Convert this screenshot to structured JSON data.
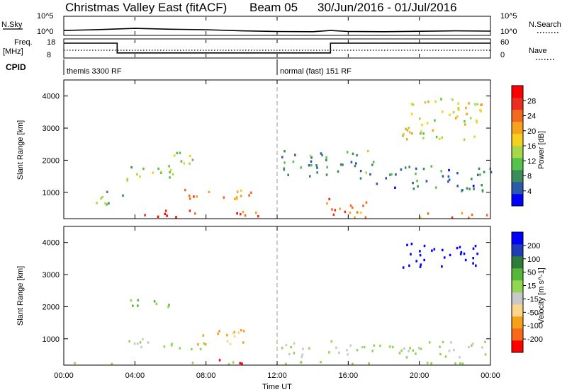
{
  "header": {
    "title": "Christmas Valley East (fitACF)",
    "beam": "Beam 05",
    "date_range": "30/Jun/2016 - 01/Jul/2016"
  },
  "summary_panel": {
    "nsky_label": "N.Sky",
    "nsearch_label": "N.Search",
    "noise_ticks": [
      "10^5",
      "10^0"
    ],
    "freq_label_line1": "Freq.",
    "freq_label_line2": "[MHz]",
    "freq_ticks": [
      "18",
      "8"
    ],
    "nave_label": "Nave",
    "nave_ticks": [
      "60",
      "0"
    ],
    "cpid_label": "CPID",
    "cpid_segments": [
      {
        "name": "themis 3300 RF",
        "start_hour": 0,
        "end_hour": 12
      },
      {
        "name": "normal (fast) 151 RF",
        "start_hour": 12,
        "end_hour": 24
      }
    ]
  },
  "power_colorbar": {
    "label": "Power [dB]",
    "ticks": [
      "28",
      "24",
      "20",
      "16",
      "12",
      "8",
      "4"
    ],
    "colors": [
      "#0000ff",
      "#2a5aa8",
      "#3c8c5a",
      "#57c24b",
      "#a6d84a",
      "#f6d01e",
      "#f7a21c",
      "#f26a1f",
      "#ea2f22",
      "#ff0000"
    ]
  },
  "velocity_colorbar": {
    "label": "Velocity [m s^-1]",
    "ticks": [
      "200",
      "100",
      "50",
      "15",
      "-15",
      "-50",
      "-100",
      "-200"
    ],
    "colors": [
      "#ff0000",
      "#f86a1a",
      "#f6a01a",
      "#f8d68a",
      "#c8c8c8",
      "#8fd651",
      "#56b83a",
      "#2e7b3c",
      "#1f3bb6",
      "#0000ff"
    ]
  },
  "axes": {
    "ylabel": "Slant Range [km]",
    "yticks": [
      "4000",
      "3000",
      "2000",
      "1000"
    ],
    "xlabel": "Time UT",
    "xticks": [
      "00:00",
      "04:00",
      "08:00",
      "12:00",
      "16:00",
      "20:00",
      "00:00"
    ]
  },
  "chart_data": [
    {
      "type": "line",
      "title": "Christmas Valley East (fitACF)",
      "ylabel": "N.Sky",
      "y_scale": "log",
      "ylim": [
        1,
        100000
      ],
      "x": [
        0,
        2,
        4,
        6,
        8,
        10,
        12,
        14,
        15,
        16,
        18,
        20,
        22,
        24
      ],
      "series": [
        {
          "name": "N.Sky",
          "values": [
            15,
            28,
            60,
            35,
            25,
            12,
            8,
            7,
            15,
            8,
            7,
            9,
            12,
            10
          ]
        }
      ]
    },
    {
      "type": "line",
      "ylabel": "Freq. [MHz]",
      "ylim": [
        8,
        18
      ],
      "x": [
        0,
        3,
        3,
        15,
        15,
        24
      ],
      "series": [
        {
          "name": "Freq.",
          "values": [
            16,
            16,
            10.5,
            10.5,
            16,
            16
          ]
        },
        {
          "name": "Nave",
          "values": [
            12,
            12,
            12,
            12,
            12,
            12
          ]
        }
      ]
    },
    {
      "type": "heatmap",
      "ylabel": "Slant Range [km]",
      "xlabel": "Time UT",
      "colorbar_label": "Power [dB]",
      "clim": [
        0,
        30
      ],
      "xlim": [
        0,
        24
      ],
      "ylim": [
        180,
        4500
      ],
      "regions": [
        {
          "t": [
            6.0,
            10.5
          ],
          "r": [
            700,
            1100
          ],
          "v": 20
        },
        {
          "t": [
            4.5,
            7.5
          ],
          "r": [
            180,
            500
          ],
          "v": 28
        },
        {
          "t": [
            8.5,
            11.0
          ],
          "r": [
            180,
            450
          ],
          "v": 24
        },
        {
          "t": [
            3.5,
            6.5
          ],
          "r": [
            1200,
            1800
          ],
          "v": 12
        },
        {
          "t": [
            6.0,
            7.5
          ],
          "r": [
            1800,
            2400
          ],
          "v": 12
        },
        {
          "t": [
            1.5,
            4.0
          ],
          "r": [
            600,
            1000
          ],
          "v": 10
        },
        {
          "t": [
            14.0,
            17.0
          ],
          "r": [
            180,
            800
          ],
          "v": 22
        },
        {
          "t": [
            19.0,
            24.0
          ],
          "r": [
            180,
            350
          ],
          "v": 20
        },
        {
          "t": [
            19.0,
            23.5
          ],
          "r": [
            2600,
            4000
          ],
          "v": 16
        },
        {
          "t": [
            12.2,
            17.5
          ],
          "r": [
            1400,
            2300
          ],
          "v": 8
        },
        {
          "t": [
            17.5,
            24.0
          ],
          "r": [
            1000,
            1800
          ],
          "v": 6
        }
      ]
    },
    {
      "type": "heatmap",
      "ylabel": "Slant Range [km]",
      "xlabel": "Time UT",
      "colorbar_label": "Velocity [m s^-1]",
      "clim": [
        -200,
        200
      ],
      "xlim": [
        0,
        24
      ],
      "ylim": [
        180,
        4500
      ],
      "regions": [
        {
          "t": [
            19.0,
            23.5
          ],
          "r": [
            3200,
            4000
          ],
          "v": 200
        },
        {
          "t": [
            7.5,
            11.0
          ],
          "r": [
            800,
            1300
          ],
          "v": -80
        },
        {
          "t": [
            8.5,
            10.5
          ],
          "r": [
            180,
            350
          ],
          "v": -220
        },
        {
          "t": [
            3.5,
            6.5
          ],
          "r": [
            700,
            1000
          ],
          "v": -10
        },
        {
          "t": [
            5.5,
            8.0
          ],
          "r": [
            600,
            900
          ],
          "v": 20
        },
        {
          "t": [
            12.0,
            24.0
          ],
          "r": [
            400,
            900
          ],
          "v": 0
        },
        {
          "t": [
            3.5,
            6.5
          ],
          "r": [
            1900,
            2200
          ],
          "v": 40
        },
        {
          "t": [
            0.5,
            24.0
          ],
          "r": [
            180,
            260
          ],
          "v": 20
        }
      ]
    }
  ]
}
